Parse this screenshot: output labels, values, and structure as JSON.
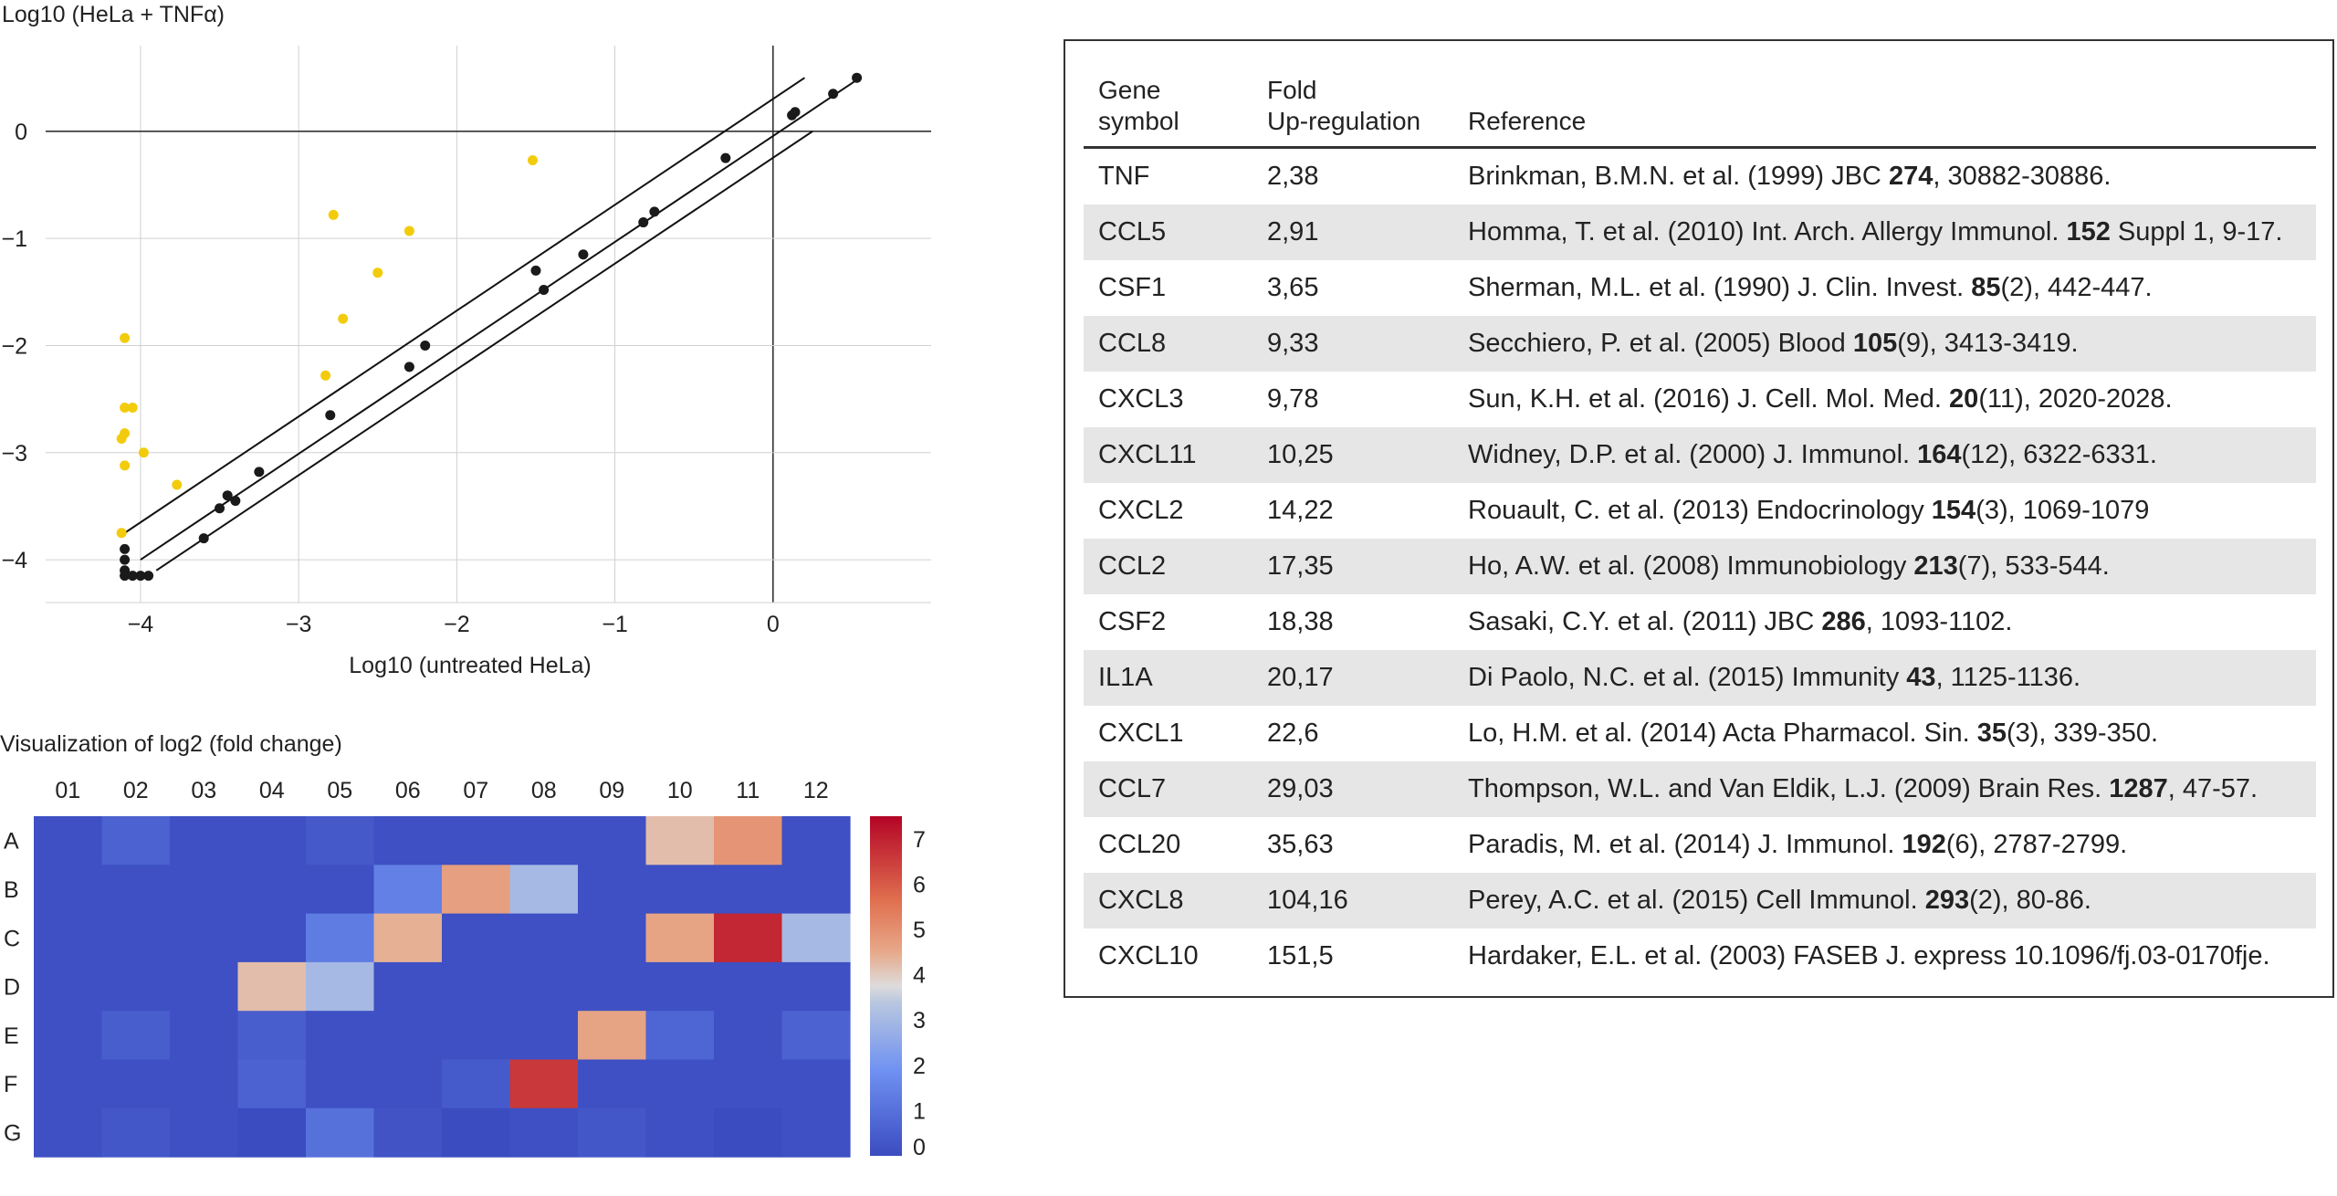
{
  "scatter": {
    "ylabel": "Log10 (HeLa + TNFα)",
    "xlabel": "Log10 (untreated HeLa)",
    "colors": {
      "black": "#1a1a1a",
      "yellow": "#f2cc0c",
      "grid": "#d0d0d0"
    },
    "chart_data": {
      "type": "scatter",
      "title": "",
      "xlabel": "Log10 (untreated HeLa)",
      "ylabel": "Log10 (HeLa + TNFα)",
      "xlim": [
        -4.6,
        1.0
      ],
      "ylim": [
        -4.4,
        0.8
      ],
      "x_ticks": [
        -4,
        -3,
        -2,
        -1,
        0
      ],
      "x_tick_labels": [
        "−4",
        "−3",
        "−2",
        "−1",
        "0"
      ],
      "y_ticks": [
        0,
        -1,
        -2,
        -3,
        -4
      ],
      "y_tick_labels": [
        "0",
        "−1",
        "−2",
        "−3",
        "−4"
      ],
      "reference_lines": [
        {
          "name": "upper",
          "x": [
            -4.1,
            0.2
          ],
          "y": [
            -3.75,
            0.5
          ]
        },
        {
          "name": "identity",
          "x": [
            -4.0,
            0.55
          ],
          "y": [
            -4.0,
            0.5
          ]
        },
        {
          "name": "lower",
          "x": [
            -3.9,
            0.25
          ],
          "y": [
            -4.1,
            0.0
          ]
        }
      ],
      "series": [
        {
          "name": "black",
          "color": "#1a1a1a",
          "x": [
            -4.1,
            -4.1,
            -4.1,
            -4.1,
            -4.05,
            -4.0,
            -3.95,
            -3.6,
            -3.5,
            -3.45,
            -3.4,
            -3.25,
            -2.8,
            -2.3,
            -2.2,
            -1.5,
            -1.45,
            -1.2,
            -0.82,
            -0.75,
            -0.3,
            0.12,
            0.14,
            0.38,
            0.53
          ],
          "y": [
            -3.9,
            -4.0,
            -4.1,
            -4.15,
            -4.15,
            -4.15,
            -4.15,
            -3.8,
            -3.52,
            -3.4,
            -3.45,
            -3.18,
            -2.65,
            -2.2,
            -2.0,
            -1.3,
            -1.48,
            -1.15,
            -0.85,
            -0.75,
            -0.25,
            0.15,
            0.18,
            0.35,
            0.5
          ]
        },
        {
          "name": "yellow",
          "color": "#f2cc0c",
          "x": [
            -4.12,
            -4.1,
            -4.1,
            -4.1,
            -4.12,
            -4.05,
            -4.1,
            -3.98,
            -3.77,
            -2.83,
            -2.78,
            -2.72,
            -2.5,
            -2.3,
            -1.52
          ],
          "y": [
            -3.75,
            -1.93,
            -2.58,
            -2.82,
            -2.87,
            -2.58,
            -3.12,
            -3.0,
            -3.3,
            -2.28,
            -0.78,
            -1.75,
            -1.32,
            -0.93,
            -0.27
          ]
        }
      ]
    }
  },
  "heatmap": {
    "title": "Visualization of log2 (fold change)",
    "chart_data": {
      "type": "heatmap",
      "title": "Visualization of log2 (fold change)",
      "columns": [
        "01",
        "02",
        "03",
        "04",
        "05",
        "06",
        "07",
        "08",
        "09",
        "10",
        "11",
        "12"
      ],
      "rows": [
        "A",
        "B",
        "C",
        "D",
        "E",
        "F",
        "G"
      ],
      "values": [
        [
          0.1,
          0.6,
          0.1,
          0.1,
          0.35,
          0.1,
          0.1,
          0.1,
          0.1,
          4.2,
          4.9,
          0.1
        ],
        [
          0.1,
          0.1,
          0.1,
          0.1,
          0.1,
          1.4,
          4.7,
          3.0,
          0.1,
          0.1,
          0.1,
          0.1
        ],
        [
          0.1,
          0.1,
          0.1,
          0.1,
          1.3,
          4.4,
          0.1,
          0.1,
          0.1,
          4.6,
          6.9,
          3.0
        ],
        [
          0.1,
          0.1,
          0.1,
          4.2,
          3.0,
          0.1,
          0.1,
          0.1,
          0.1,
          0.1,
          0.1,
          0.1
        ],
        [
          0.1,
          0.5,
          0.1,
          0.5,
          0.1,
          0.1,
          0.1,
          0.1,
          4.6,
          0.7,
          0.1,
          0.6
        ],
        [
          0.1,
          0.1,
          0.1,
          0.6,
          0.1,
          0.1,
          0.4,
          6.6,
          0.1,
          0.1,
          0.1,
          0.1
        ],
        [
          0.1,
          0.3,
          0.1,
          0.0,
          1.0,
          0.2,
          0.0,
          0.1,
          0.3,
          0.1,
          0.0,
          0.1
        ]
      ],
      "vmin": 0,
      "vmax": 7.5,
      "colorbar_ticks": [
        0,
        1,
        2,
        3,
        4,
        5,
        6,
        7
      ],
      "colorbar_tick_labels": [
        "0",
        "1",
        "2",
        "3",
        "4",
        "5",
        "6",
        "7"
      ],
      "colormap": "coolwarm"
    }
  },
  "table": {
    "headers": {
      "gene": "Gene symbol",
      "fold_line1": "Fold",
      "fold_line2": "Up-regulation",
      "reference": "Reference"
    },
    "rows": [
      {
        "gene": "TNF",
        "fold": "2,38",
        "ref_pre": "Brinkman, B.M.N. et al. (1999) JBC ",
        "ref_bold": "274",
        "ref_post": ", 30882-30886."
      },
      {
        "gene": "CCL5",
        "fold": "2,91",
        "ref_pre": "Homma, T. et al. (2010) Int. Arch. Allergy Immunol. ",
        "ref_bold": "152",
        "ref_post": " Suppl 1, 9-17."
      },
      {
        "gene": "CSF1",
        "fold": "3,65",
        "ref_pre": "Sherman, M.L. et al. (1990) J. Clin. Invest. ",
        "ref_bold": "85",
        "ref_post": "(2), 442-447."
      },
      {
        "gene": "CCL8",
        "fold": "9,33",
        "ref_pre": "Secchiero, P. et al. (2005) Blood ",
        "ref_bold": "105",
        "ref_post": "(9), 3413-3419."
      },
      {
        "gene": "CXCL3",
        "fold": "9,78",
        "ref_pre": "Sun, K.H. et al. (2016) J. Cell. Mol. Med. ",
        "ref_bold": "20",
        "ref_post": "(11), 2020-2028."
      },
      {
        "gene": "CXCL11",
        "fold": "10,25",
        "ref_pre": "Widney, D.P. et al. (2000) J. Immunol. ",
        "ref_bold": "164",
        "ref_post": "(12), 6322-6331."
      },
      {
        "gene": "CXCL2",
        "fold": "14,22",
        "ref_pre": "Rouault, C. et al. (2013) Endocrinology ",
        "ref_bold": "154",
        "ref_post": "(3), 1069-1079"
      },
      {
        "gene": "CCL2",
        "fold": "17,35",
        "ref_pre": "Ho, A.W. et al. (2008) Immunobiology ",
        "ref_bold": "213",
        "ref_post": "(7), 533-544."
      },
      {
        "gene": "CSF2",
        "fold": "18,38",
        "ref_pre": "Sasaki, C.Y. et al. (2011) JBC ",
        "ref_bold": "286",
        "ref_post": ", 1093-1102."
      },
      {
        "gene": "IL1A",
        "fold": "20,17",
        "ref_pre": "Di Paolo, N.C. et al. (2015) Immunity ",
        "ref_bold": "43",
        "ref_post": ", 1125-1136."
      },
      {
        "gene": "CXCL1",
        "fold": "22,6",
        "ref_pre": "Lo, H.M. et al. (2014) Acta Pharmacol. Sin. ",
        "ref_bold": "35",
        "ref_post": "(3), 339-350."
      },
      {
        "gene": "CCL7",
        "fold": "29,03",
        "ref_pre": "Thompson, W.L. and Van Eldik, L.J. (2009) Brain Res. ",
        "ref_bold": "1287",
        "ref_post": ", 47-57."
      },
      {
        "gene": "CCL20",
        "fold": "35,63",
        "ref_pre": "Paradis, M. et al. (2014) J. Immunol. ",
        "ref_bold": "192",
        "ref_post": "(6), 2787-2799."
      },
      {
        "gene": "CXCL8",
        "fold": "104,16",
        "ref_pre": "Perey, A.C. et al. (2015) Cell Immunol. ",
        "ref_bold": "293",
        "ref_post": "(2), 80-86."
      },
      {
        "gene": "CXCL10",
        "fold": "151,5",
        "ref_pre": "Hardaker, E.L. et al. (2003) FASEB J. express 10.1096/fj.03-0170fje.",
        "ref_bold": "",
        "ref_post": ""
      }
    ]
  }
}
